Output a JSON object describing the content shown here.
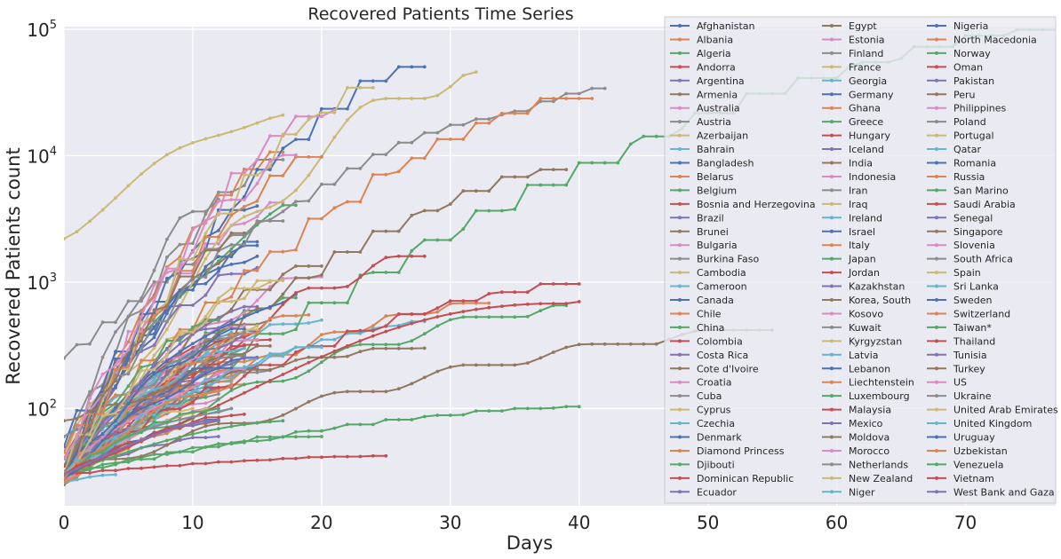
{
  "chart_data": {
    "type": "line",
    "title": "Recovered Patients Time Series",
    "xlabel": "Days",
    "ylabel": "Recovered Patients count",
    "xlim": [
      0,
      77
    ],
    "ylim": [
      17,
      105000
    ],
    "yscale": "log",
    "x_ticks": [
      0,
      10,
      20,
      30,
      40,
      50,
      60,
      70
    ],
    "y_ticks": [
      {
        "value": 100,
        "base": "10",
        "exp": "2"
      },
      {
        "value": 1000,
        "base": "10",
        "exp": "3"
      },
      {
        "value": 10000,
        "base": "10",
        "exp": "4"
      },
      {
        "value": 100000,
        "base": "10",
        "exp": "5"
      }
    ],
    "grid": true,
    "background": "#eaeaf2",
    "legend_position": "top-right",
    "legend_columns": 3,
    "series": [
      {
        "name": "Afghanistan",
        "color": "#4c72b0",
        "start": 30,
        "end": 200,
        "days": 15
      },
      {
        "name": "Albania",
        "color": "#dd8452",
        "start": 28,
        "end": 150,
        "days": 14
      },
      {
        "name": "Algeria",
        "color": "#55a868",
        "start": 30,
        "end": 700,
        "days": 18
      },
      {
        "name": "Andorra",
        "color": "#c44e52",
        "start": 27,
        "end": 350,
        "days": 16
      },
      {
        "name": "Argentina",
        "color": "#8172b3",
        "start": 26,
        "end": 400,
        "days": 15
      },
      {
        "name": "Armenia",
        "color": "#937860",
        "start": 30,
        "end": 500,
        "days": 16
      },
      {
        "name": "Australia",
        "color": "#da8bc3",
        "start": 40,
        "end": 4000,
        "days": 17
      },
      {
        "name": "Austria",
        "color": "#8c8c8c",
        "start": 45,
        "end": 9000,
        "days": 17
      },
      {
        "name": "Azerbaijan",
        "color": "#ccb974",
        "start": 28,
        "end": 450,
        "days": 15
      },
      {
        "name": "Bahrain",
        "color": "#64b5cd",
        "start": 60,
        "end": 500,
        "days": 20
      },
      {
        "name": "Bangladesh",
        "color": "#4c72b0",
        "start": 30,
        "end": 80,
        "days": 12
      },
      {
        "name": "Belarus",
        "color": "#dd8452",
        "start": 32,
        "end": 250,
        "days": 15
      },
      {
        "name": "Belgium",
        "color": "#55a868",
        "start": 35,
        "end": 4000,
        "days": 18
      },
      {
        "name": "Bosnia and Herzegovina",
        "color": "#c44e52",
        "start": 26,
        "end": 200,
        "days": 14
      },
      {
        "name": "Brazil",
        "color": "#8172b3",
        "start": 25,
        "end": 650,
        "days": 9
      },
      {
        "name": "Brunei",
        "color": "#937860",
        "start": 25,
        "end": 100,
        "days": 11
      },
      {
        "name": "Bulgaria",
        "color": "#da8bc3",
        "start": 26,
        "end": 120,
        "days": 12
      },
      {
        "name": "Burkina Faso",
        "color": "#8c8c8c",
        "start": 25,
        "end": 130,
        "days": 12
      },
      {
        "name": "Cambodia",
        "color": "#ccb974",
        "start": 30,
        "end": 100,
        "days": 10
      },
      {
        "name": "Cameroon",
        "color": "#64b5cd",
        "start": 26,
        "end": 160,
        "days": 13
      },
      {
        "name": "Canada",
        "color": "#4c72b0",
        "start": 35,
        "end": 1800,
        "days": 15
      },
      {
        "name": "Chile",
        "color": "#dd8452",
        "start": 30,
        "end": 9800,
        "days": 17
      },
      {
        "name": "China",
        "color": "#55a868",
        "start": 28,
        "end": 77000,
        "days": 77
      },
      {
        "name": "Colombia",
        "color": "#c44e52",
        "start": 30,
        "end": 400,
        "days": 14
      },
      {
        "name": "Costa Rica",
        "color": "#8172b3",
        "start": 30,
        "end": 60,
        "days": 12
      },
      {
        "name": "Cote d'Ivoire",
        "color": "#937860",
        "start": 25,
        "end": 150,
        "days": 13
      },
      {
        "name": "Croatia",
        "color": "#da8bc3",
        "start": 30,
        "end": 1100,
        "days": 20
      },
      {
        "name": "Cuba",
        "color": "#8c8c8c",
        "start": 26,
        "end": 300,
        "days": 14
      },
      {
        "name": "Cyprus",
        "color": "#ccb974",
        "start": 28,
        "end": 80,
        "days": 12
      },
      {
        "name": "Czechia",
        "color": "#64b5cd",
        "start": 35,
        "end": 250,
        "days": 12
      },
      {
        "name": "Denmark",
        "color": "#4c72b0",
        "start": 40,
        "end": 1600,
        "days": 15
      },
      {
        "name": "Diamond Princess",
        "color": "#dd8452",
        "start": 40,
        "end": 650,
        "days": 33
      },
      {
        "name": "Djibouti",
        "color": "#55a868",
        "start": 28,
        "end": 120,
        "days": 11
      },
      {
        "name": "Dominican Republic",
        "color": "#c44e52",
        "start": 28,
        "end": 300,
        "days": 14
      },
      {
        "name": "Ecuador",
        "color": "#8172b3",
        "start": 30,
        "end": 600,
        "days": 15
      },
      {
        "name": "Egypt",
        "color": "#937860",
        "start": 30,
        "end": 1300,
        "days": 20
      },
      {
        "name": "Estonia",
        "color": "#da8bc3",
        "start": 28,
        "end": 200,
        "days": 14
      },
      {
        "name": "Finland",
        "color": "#8c8c8c",
        "start": 35,
        "end": 4500,
        "days": 12
      },
      {
        "name": "France",
        "color": "#ccb974",
        "start": 40,
        "end": 46000,
        "days": 32
      },
      {
        "name": "Georgia",
        "color": "#64b5cd",
        "start": 26,
        "end": 250,
        "days": 15
      },
      {
        "name": "Germany",
        "color": "#4c72b0",
        "start": 50,
        "end": 46000,
        "days": 28
      },
      {
        "name": "Ghana",
        "color": "#dd8452",
        "start": 28,
        "end": 200,
        "days": 14
      },
      {
        "name": "Greece",
        "color": "#55a868",
        "start": 30,
        "end": 270,
        "days": 14
      },
      {
        "name": "Hungary",
        "color": "#c44e52",
        "start": 28,
        "end": 250,
        "days": 14
      },
      {
        "name": "Iceland",
        "color": "#8172b3",
        "start": 40,
        "end": 1300,
        "days": 15
      },
      {
        "name": "India",
        "color": "#937860",
        "start": 40,
        "end": 1700,
        "days": 13
      },
      {
        "name": "Indonesia",
        "color": "#da8bc3",
        "start": 30,
        "end": 450,
        "days": 14
      },
      {
        "name": "Iran",
        "color": "#8c8c8c",
        "start": 250,
        "end": 29000,
        "days": 42
      },
      {
        "name": "Iraq",
        "color": "#ccb974",
        "start": 28,
        "end": 1000,
        "days": 16
      },
      {
        "name": "Ireland",
        "color": "#64b5cd",
        "start": 30,
        "end": 400,
        "days": 13
      },
      {
        "name": "Israel",
        "color": "#4c72b0",
        "start": 35,
        "end": 2000,
        "days": 15
      },
      {
        "name": "Italy",
        "color": "#dd8452",
        "start": 45,
        "end": 26000,
        "days": 41
      },
      {
        "name": "Japan",
        "color": "#55a868",
        "start": 30,
        "end": 600,
        "days": 39
      },
      {
        "name": "Jordan",
        "color": "#c44e52",
        "start": 30,
        "end": 300,
        "days": 15
      },
      {
        "name": "Kazakhstan",
        "color": "#8172b3",
        "start": 28,
        "end": 150,
        "days": 13
      },
      {
        "name": "Korea, South",
        "color": "#937860",
        "start": 30,
        "end": 6700,
        "days": 39
      },
      {
        "name": "Kosovo",
        "color": "#da8bc3",
        "start": 26,
        "end": 100,
        "days": 11
      },
      {
        "name": "Kuwait",
        "color": "#8c8c8c",
        "start": 60,
        "end": 200,
        "days": 16
      },
      {
        "name": "Kyrgyzstan",
        "color": "#ccb974",
        "start": 28,
        "end": 100,
        "days": 12
      },
      {
        "name": "Latvia",
        "color": "#64b5cd",
        "start": 26,
        "end": 30,
        "days": 4
      },
      {
        "name": "Lebanon",
        "color": "#4c72b0",
        "start": 30,
        "end": 800,
        "days": 18
      },
      {
        "name": "Liechtenstein",
        "color": "#dd8452",
        "start": 26,
        "end": 80,
        "days": 12
      },
      {
        "name": "Luxembourg",
        "color": "#55a868",
        "start": 30,
        "end": 500,
        "days": 12
      },
      {
        "name": "Malaysia",
        "color": "#c44e52",
        "start": 30,
        "end": 1500,
        "days": 28
      },
      {
        "name": "Mexico",
        "color": "#8172b3",
        "start": 30,
        "end": 500,
        "days": 13
      },
      {
        "name": "Moldova",
        "color": "#937860",
        "start": 28,
        "end": 300,
        "days": 16
      },
      {
        "name": "Morocco",
        "color": "#da8bc3",
        "start": 30,
        "end": 350,
        "days": 15
      },
      {
        "name": "Netherlands",
        "color": "#8c8c8c",
        "start": 30,
        "end": 250,
        "days": 14
      },
      {
        "name": "New Zealand",
        "color": "#ccb974",
        "start": 30,
        "end": 400,
        "days": 15
      },
      {
        "name": "Niger",
        "color": "#64b5cd",
        "start": 30,
        "end": 480,
        "days": 28
      },
      {
        "name": "Nigeria",
        "color": "#4c72b0",
        "start": 30,
        "end": 250,
        "days": 14
      },
      {
        "name": "North Macedonia",
        "color": "#dd8452",
        "start": 28,
        "end": 200,
        "days": 14
      },
      {
        "name": "Norway",
        "color": "#55a868",
        "start": 30,
        "end": 60,
        "days": 20
      },
      {
        "name": "Oman",
        "color": "#c44e52",
        "start": 30,
        "end": 42,
        "days": 25
      },
      {
        "name": "Pakistan",
        "color": "#8172b3",
        "start": 30,
        "end": 400,
        "days": 15
      },
      {
        "name": "Peru",
        "color": "#937860",
        "start": 30,
        "end": 400,
        "days": 55
      },
      {
        "name": "Philippines",
        "color": "#da8bc3",
        "start": 30,
        "end": 23000,
        "days": 21
      },
      {
        "name": "Poland",
        "color": "#8c8c8c",
        "start": 30,
        "end": 3000,
        "days": 17
      },
      {
        "name": "Portugal",
        "color": "#ccb974",
        "start": 2200,
        "end": 21000,
        "days": 17
      },
      {
        "name": "Qatar",
        "color": "#64b5cd",
        "start": 30,
        "end": 300,
        "days": 14
      },
      {
        "name": "Romania",
        "color": "#4c72b0",
        "start": 30,
        "end": 4000,
        "days": 15
      },
      {
        "name": "Russia",
        "color": "#dd8452",
        "start": 30,
        "end": 550,
        "days": 19
      },
      {
        "name": "San Marino",
        "color": "#55a868",
        "start": 30,
        "end": 80,
        "days": 17
      },
      {
        "name": "Saudi Arabia",
        "color": "#c44e52",
        "start": 35,
        "end": 900,
        "days": 40
      },
      {
        "name": "Senegal",
        "color": "#8172b3",
        "start": 30,
        "end": 250,
        "days": 15
      },
      {
        "name": "Singapore",
        "color": "#937860",
        "start": 80,
        "end": 300,
        "days": 28
      },
      {
        "name": "Slovenia",
        "color": "#da8bc3",
        "start": 30,
        "end": 200,
        "days": 14
      },
      {
        "name": "South Africa",
        "color": "#8c8c8c",
        "start": 30,
        "end": 400,
        "days": 14
      },
      {
        "name": "Spain",
        "color": "#ccb974",
        "start": 30,
        "end": 30000,
        "days": 24
      },
      {
        "name": "Sri Lanka",
        "color": "#64b5cd",
        "start": 30,
        "end": 100,
        "days": 13
      },
      {
        "name": "Sweden",
        "color": "#4c72b0",
        "start": 30,
        "end": 400,
        "days": 14
      },
      {
        "name": "Switzerland",
        "color": "#dd8452",
        "start": 30,
        "end": 9000,
        "days": 20
      },
      {
        "name": "Taiwan*",
        "color": "#55a868",
        "start": 30,
        "end": 100,
        "days": 40
      },
      {
        "name": "Thailand",
        "color": "#c44e52",
        "start": 30,
        "end": 700,
        "days": 40
      },
      {
        "name": "Tunisia",
        "color": "#8172b3",
        "start": 30,
        "end": 80,
        "days": 12
      },
      {
        "name": "Turkey",
        "color": "#937860",
        "start": 30,
        "end": 2200,
        "days": 14
      },
      {
        "name": "US",
        "color": "#da8bc3",
        "start": 40,
        "end": 9000,
        "days": 18
      },
      {
        "name": "Ukraine",
        "color": "#8c8c8c",
        "start": 30,
        "end": 100,
        "days": 13
      },
      {
        "name": "United Arab Emirates",
        "color": "#ccb974",
        "start": 30,
        "end": 1000,
        "days": 17
      },
      {
        "name": "United Kingdom",
        "color": "#64b5cd",
        "start": 30,
        "end": 300,
        "days": 20
      },
      {
        "name": "Uruguay",
        "color": "#4c72b0",
        "start": 28,
        "end": 200,
        "days": 13
      },
      {
        "name": "Uzbekistan",
        "color": "#dd8452",
        "start": 28,
        "end": 150,
        "days": 13
      },
      {
        "name": "Venezuela",
        "color": "#55a868",
        "start": 30,
        "end": 100,
        "days": 12
      },
      {
        "name": "Vietnam",
        "color": "#c44e52",
        "start": 30,
        "end": 90,
        "days": 14
      },
      {
        "name": "West Bank and Gaza",
        "color": "#8172b3",
        "start": 30,
        "end": 80,
        "days": 12
      }
    ]
  }
}
